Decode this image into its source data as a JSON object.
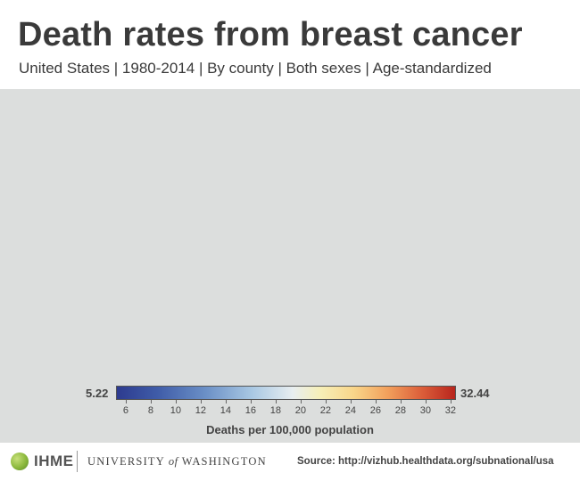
{
  "header": {
    "title": "Death rates from breast cancer",
    "subtitle": "United States | 1980-2014 | By county | Both sexes | Age-standardized"
  },
  "legend": {
    "min_label": "5.22",
    "max_label": "32.44",
    "min_value": 5.22,
    "max_value": 32.44,
    "ticks": [
      "6",
      "8",
      "10",
      "12",
      "14",
      "16",
      "18",
      "20",
      "22",
      "24",
      "26",
      "28",
      "30",
      "32"
    ],
    "caption": "Deaths per 100,000 population",
    "color_low": "#2d3b8f",
    "color_mid": "#f6efb8",
    "color_high": "#b8251d"
  },
  "map": {
    "background": "#dcdedd"
  },
  "footer": {
    "ihme": "IHME",
    "uw_part1": "UNIVERSITY",
    "uw_of": "of",
    "uw_part2": "WASHINGTON",
    "source": "Source: http://vizhub.healthdata.org/subnational/usa"
  }
}
